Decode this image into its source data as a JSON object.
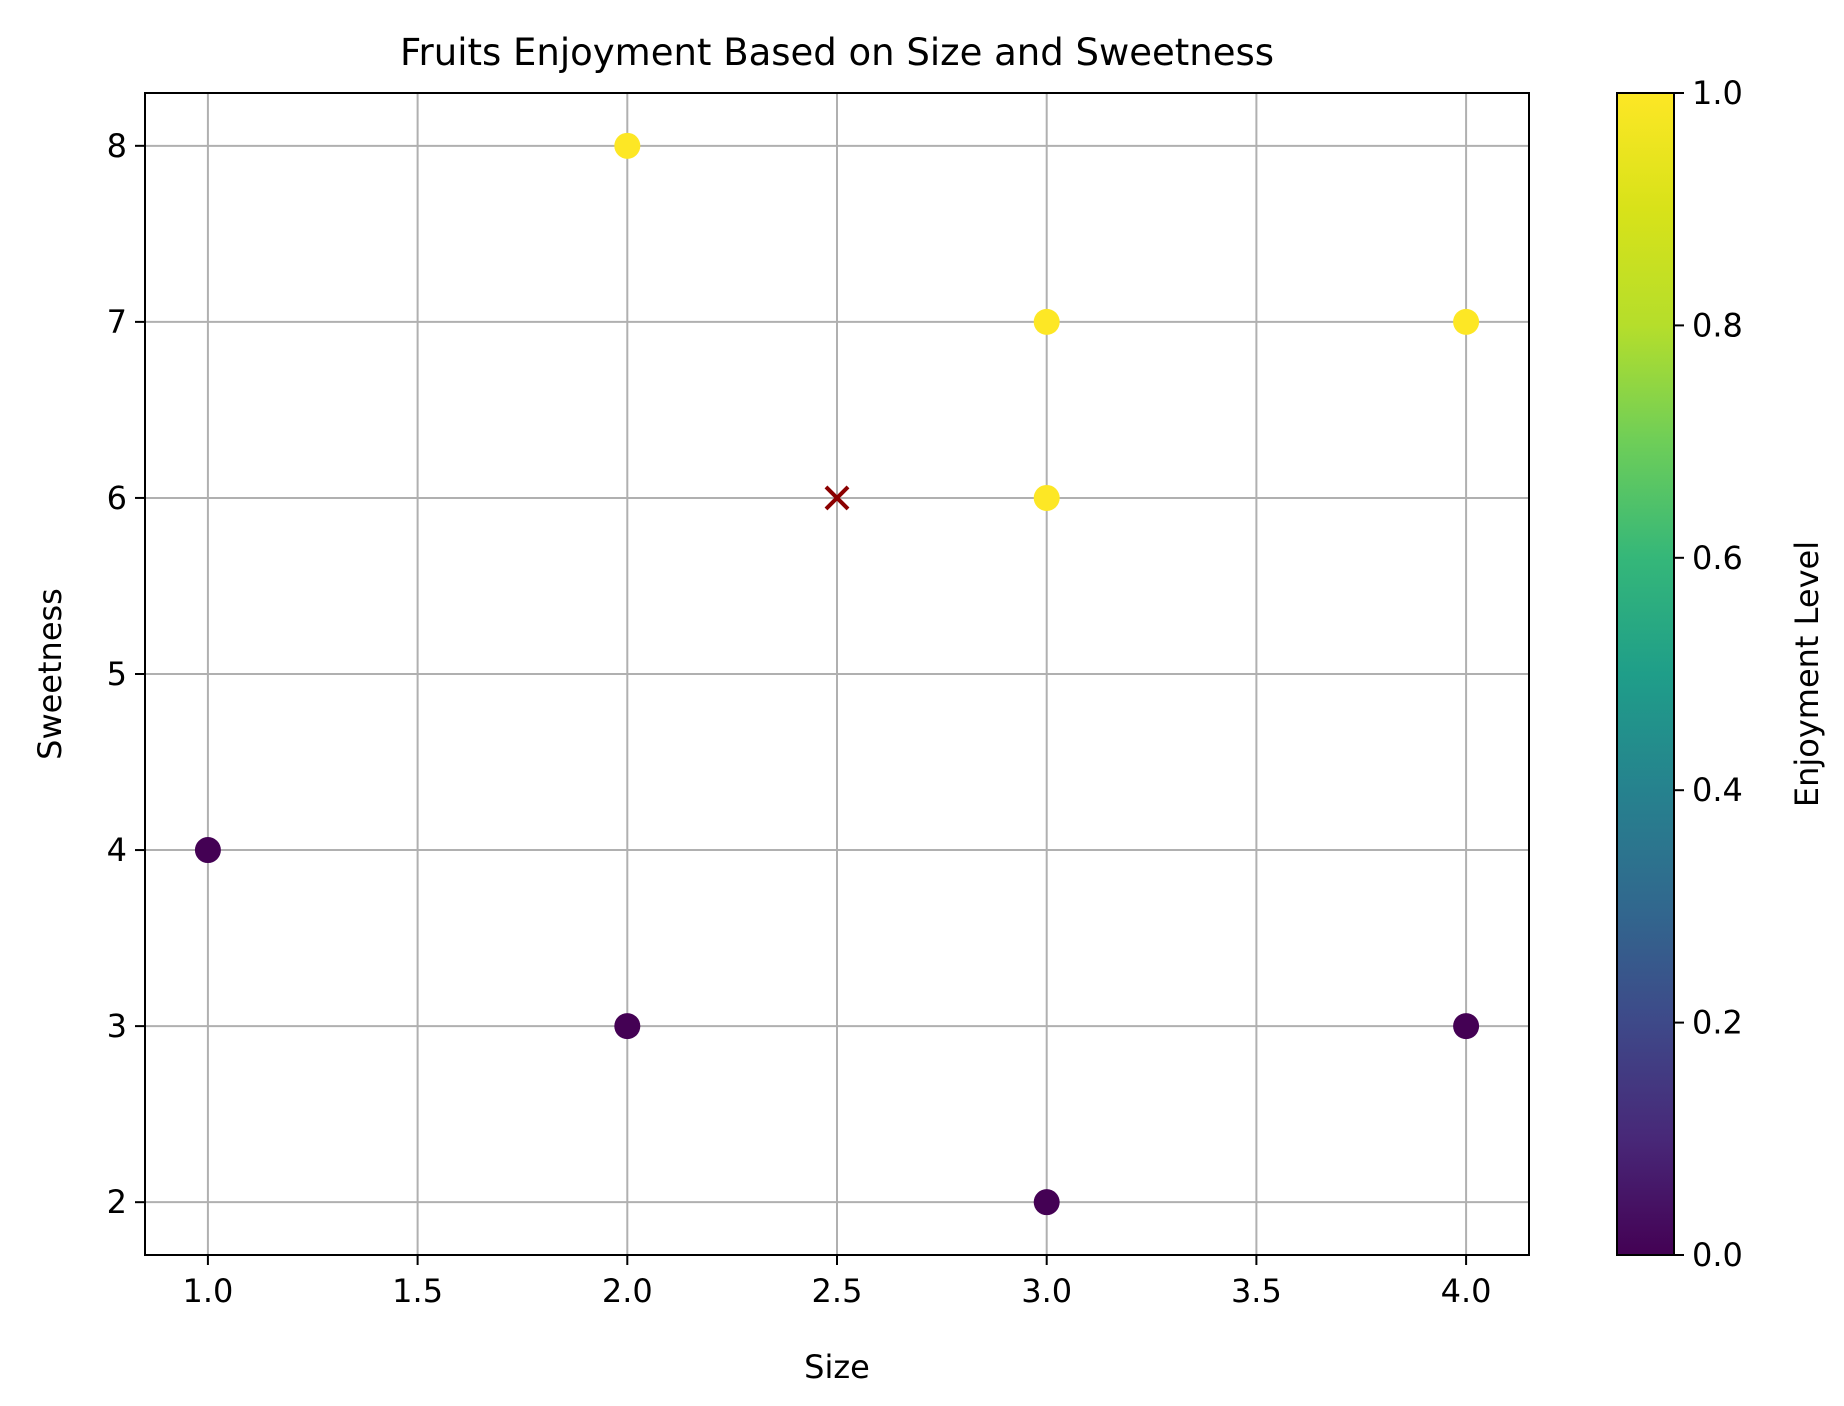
{
  "chart_data": {
    "type": "scatter",
    "title": "Fruits Enjoyment Based on Size and Sweetness",
    "xlabel": "Size",
    "ylabel": "Sweetness",
    "xlim": [
      0.85,
      4.15
    ],
    "ylim": [
      1.7,
      8.3
    ],
    "xticks": [
      "1.0",
      "1.5",
      "2.0",
      "2.5",
      "3.0",
      "3.5",
      "4.0"
    ],
    "yticks": [
      "2",
      "3",
      "4",
      "5",
      "6",
      "7",
      "8"
    ],
    "grid": true,
    "points": [
      {
        "x": 1,
        "y": 4,
        "enjoyment": 0
      },
      {
        "x": 2,
        "y": 3,
        "enjoyment": 0
      },
      {
        "x": 3,
        "y": 2,
        "enjoyment": 0
      },
      {
        "x": 4,
        "y": 3,
        "enjoyment": 0
      },
      {
        "x": 2,
        "y": 8,
        "enjoyment": 1
      },
      {
        "x": 3,
        "y": 7,
        "enjoyment": 1
      },
      {
        "x": 3,
        "y": 6,
        "enjoyment": 1
      },
      {
        "x": 4,
        "y": 7,
        "enjoyment": 1
      }
    ],
    "highlight_point": {
      "x": 2.5,
      "y": 6,
      "marker": "x",
      "color": "#8b0000"
    },
    "colorbar": {
      "label": "Enjoyment Level",
      "range": [
        0,
        1
      ],
      "ticks": [
        "0.0",
        "0.2",
        "0.4",
        "0.6",
        "0.8",
        "1.0"
      ],
      "colormap": "viridis",
      "low_color": "#440154",
      "high_color": "#fde725"
    }
  }
}
